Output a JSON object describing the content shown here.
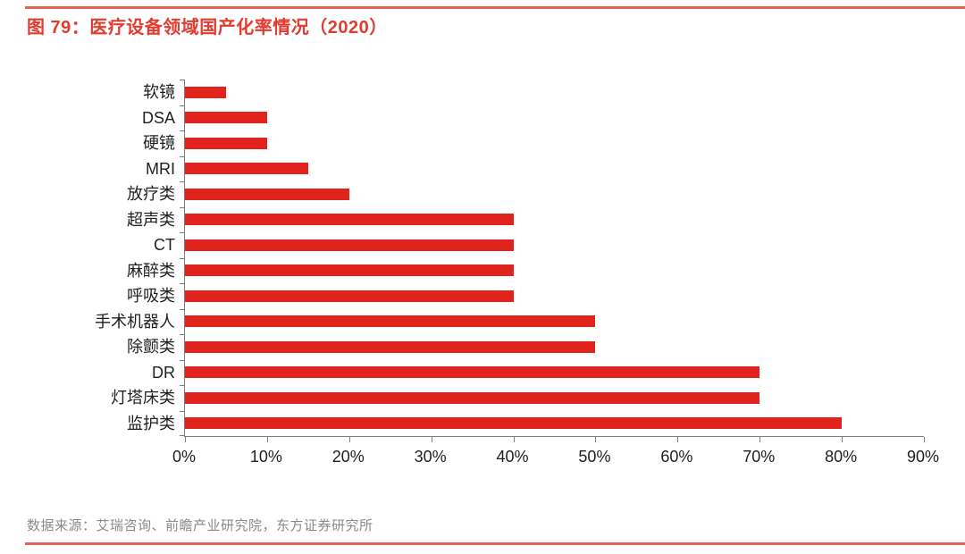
{
  "figure": {
    "title": "图 79：医疗设备领域国产化率情况（2020）",
    "source": "数据来源：艾瑞咨询、前瞻产业研究院，东方证券研究所"
  },
  "colors": {
    "bar": "#e0231c",
    "title": "#e23b30",
    "rule": "#e6625a",
    "axis": "#7d7d7d",
    "source_text": "#8a8a8a"
  },
  "chart_data": {
    "type": "bar",
    "orientation": "horizontal",
    "title": "图 79：医疗设备领域国产化率情况（2020）",
    "categories": [
      "软镜",
      "DSA",
      "硬镜",
      "MRI",
      "放疗类",
      "超声类",
      "CT",
      "麻醉类",
      "呼吸类",
      "手术机器人",
      "除颤类",
      "DR",
      "灯塔床类",
      "监护类"
    ],
    "values": [
      5,
      10,
      10,
      15,
      20,
      40,
      40,
      40,
      40,
      50,
      50,
      70,
      70,
      80
    ],
    "unit": "%",
    "xlabel": "",
    "ylabel": "",
    "xlim": [
      0,
      90
    ],
    "x_ticks": [
      "0%",
      "10%",
      "20%",
      "30%",
      "40%",
      "50%",
      "60%",
      "70%",
      "80%",
      "90%"
    ],
    "grid": false,
    "legend": null,
    "bar_color": "#e0231c"
  }
}
